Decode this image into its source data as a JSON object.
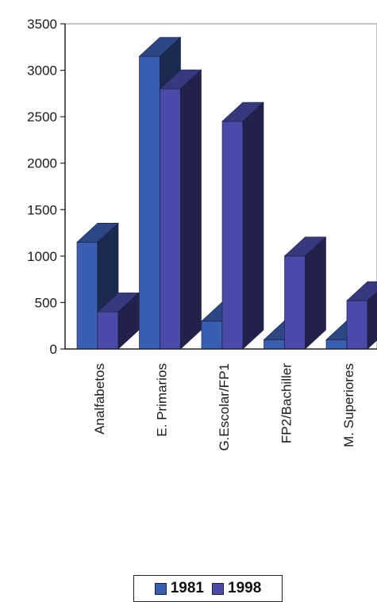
{
  "chart_data": {
    "type": "bar",
    "title": "",
    "xlabel": "",
    "ylabel": "",
    "ylim": [
      0,
      3500
    ],
    "yticks": [
      0,
      500,
      1000,
      1500,
      2000,
      2500,
      3000,
      3500
    ],
    "categories": [
      "Analfabetos",
      "E. Primarios",
      "G.Escolar/FP1",
      "FP2/Bachiller",
      "M. Superiores"
    ],
    "series": [
      {
        "name": "1981",
        "values": [
          1150,
          3150,
          300,
          100,
          100
        ],
        "color": "#3a5fb0"
      },
      {
        "name": "1998",
        "values": [
          400,
          2800,
          2450,
          1000,
          520
        ],
        "color": "#4a4aa8"
      }
    ],
    "legend_position": "bottom",
    "grid": false,
    "style": "3d-clustered"
  }
}
